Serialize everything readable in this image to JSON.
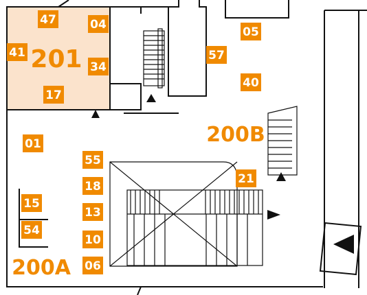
{
  "rooms": [
    {
      "label": "201"
    },
    {
      "label": "200B"
    },
    {
      "label": "200A"
    }
  ],
  "markers": [
    {
      "label": "47"
    },
    {
      "label": "04"
    },
    {
      "label": "41"
    },
    {
      "label": "34"
    },
    {
      "label": "17"
    },
    {
      "label": "05"
    },
    {
      "label": "57"
    },
    {
      "label": "40"
    },
    {
      "label": "01"
    },
    {
      "label": "55"
    },
    {
      "label": "18"
    },
    {
      "label": "21"
    },
    {
      "label": "13"
    },
    {
      "label": "15"
    },
    {
      "label": "54"
    },
    {
      "label": "10"
    },
    {
      "label": "06"
    }
  ]
}
